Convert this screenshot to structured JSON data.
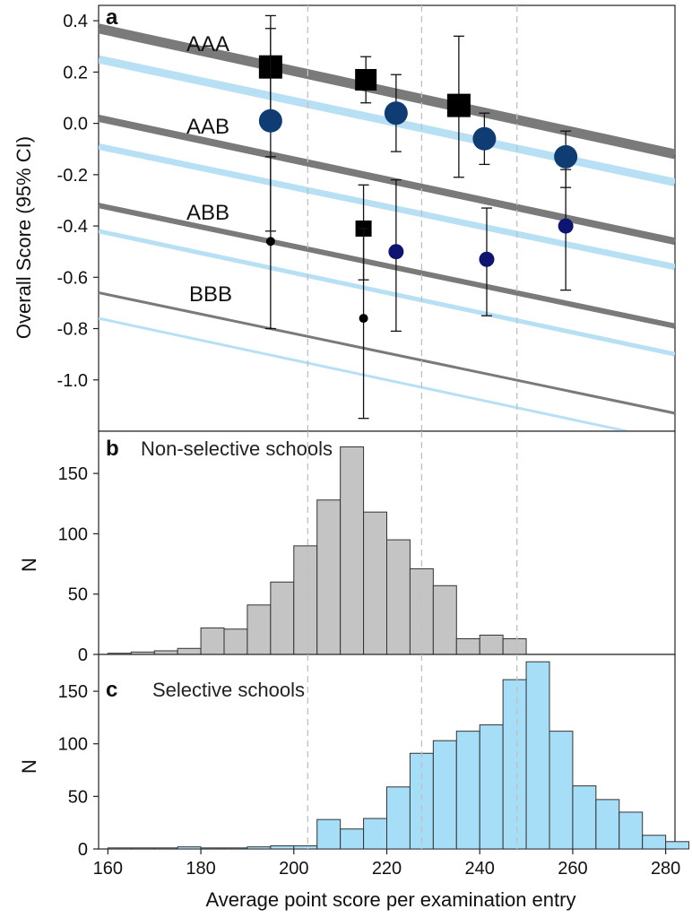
{
  "colors": {
    "grey_line": "#7a7a7a",
    "blue_line": "#b8e0f5",
    "square_marker": "#000000",
    "circle_marker": "#0f3d73",
    "small_circle_marker": "#0d1570",
    "hist_non_selective": "#c4c4c4",
    "hist_selective": "#a6def7",
    "dashed_line": "#c0c0c0"
  },
  "chart_data": [
    {
      "panel": "a",
      "type": "scatter",
      "title": "",
      "xlabel": "",
      "ylabel": "Overall Score (95% CI)",
      "xlim": [
        158,
        282
      ],
      "ylim": [
        -1.2,
        0.46
      ],
      "yticks": [
        "0.4",
        "0.2",
        "0.0",
        "-0.2",
        "-0.4",
        "-0.6",
        "-0.8",
        "-1.0"
      ],
      "dashed_vlines": [
        203,
        227.5,
        248
      ],
      "band_labels": [
        "AAA",
        "AAB",
        "ABB",
        "BBB"
      ],
      "lines": [
        {
          "group": "AAA",
          "color": "grey",
          "x": [
            158,
            282
          ],
          "y": [
            0.37,
            -0.12
          ],
          "width": 11
        },
        {
          "group": "AAA",
          "color": "blue",
          "x": [
            158,
            282
          ],
          "y": [
            0.25,
            -0.23
          ],
          "width": 9
        },
        {
          "group": "AAB",
          "color": "grey",
          "x": [
            158,
            282
          ],
          "y": [
            0.02,
            -0.46
          ],
          "width": 8
        },
        {
          "group": "AAB",
          "color": "blue",
          "x": [
            158,
            282
          ],
          "y": [
            -0.09,
            -0.56
          ],
          "width": 7
        },
        {
          "group": "ABB",
          "color": "grey",
          "x": [
            158,
            282
          ],
          "y": [
            -0.32,
            -0.79
          ],
          "width": 6
        },
        {
          "group": "ABB",
          "color": "blue",
          "x": [
            158,
            282
          ],
          "y": [
            -0.42,
            -0.9
          ],
          "width": 5
        },
        {
          "group": "BBB",
          "color": "grey",
          "x": [
            158,
            282
          ],
          "y": [
            -0.66,
            -1.13
          ],
          "width": 3
        },
        {
          "group": "BBB",
          "color": "blue",
          "x": [
            158,
            282
          ],
          "y": [
            -0.76,
            -1.24
          ],
          "width": 3
        }
      ],
      "points": [
        {
          "marker": "square",
          "size": 26,
          "x": 195,
          "y": 0.22,
          "ci": [
            0.03,
            0.37
          ]
        },
        {
          "marker": "square",
          "size": 24,
          "x": 215.5,
          "y": 0.17,
          "ci": [
            0.08,
            0.26
          ]
        },
        {
          "marker": "square",
          "size": 26,
          "x": 235.5,
          "y": 0.07,
          "ci": [
            -0.21,
            0.34
          ]
        },
        {
          "marker": "circle",
          "size": 26,
          "x": 195,
          "y": 0.01,
          "ci": [
            -0.42,
            0.42
          ]
        },
        {
          "marker": "circle",
          "size": 26,
          "x": 222,
          "y": 0.04,
          "ci": [
            -0.11,
            0.19
          ]
        },
        {
          "marker": "circle",
          "size": 26,
          "x": 241,
          "y": -0.06,
          "ci": [
            -0.16,
            0.04
          ]
        },
        {
          "marker": "circle",
          "size": 26,
          "x": 258.5,
          "y": -0.13,
          "ci": [
            -0.25,
            -0.03
          ]
        },
        {
          "marker": "square",
          "size": 18,
          "x": 215,
          "y": -0.41,
          "ci": [
            -0.61,
            -0.24
          ]
        },
        {
          "marker": "smallcircle",
          "size": 17,
          "x": 222,
          "y": -0.5,
          "ci": [
            -0.81,
            -0.22
          ]
        },
        {
          "marker": "smallcircle",
          "size": 17,
          "x": 241.5,
          "y": -0.53,
          "ci": [
            -0.75,
            -0.33
          ]
        },
        {
          "marker": "smallcircle",
          "size": 17,
          "x": 258.5,
          "y": -0.4,
          "ci": [
            -0.65,
            -0.18
          ]
        },
        {
          "marker": "dot",
          "size": 10,
          "x": 195,
          "y": -0.46,
          "ci": [
            -0.8,
            -0.13
          ]
        },
        {
          "marker": "dot",
          "size": 10,
          "x": 215,
          "y": -0.76,
          "ci": [
            -1.15,
            -0.41
          ]
        }
      ]
    },
    {
      "panel": "b",
      "type": "bar",
      "title": "Non-selective schools",
      "xlabel": "",
      "ylabel": "N",
      "xlim": [
        158,
        282
      ],
      "ylim": [
        0,
        185
      ],
      "yticks": [
        "0",
        "50",
        "100",
        "150"
      ],
      "bin_width": 5,
      "bins_start": [
        160,
        165,
        170,
        175,
        180,
        185,
        190,
        195,
        200,
        205,
        210,
        215,
        220,
        225,
        230,
        235,
        240,
        245
      ],
      "values": [
        1,
        2,
        3,
        5,
        22,
        21,
        41,
        60,
        90,
        128,
        172,
        118,
        95,
        71,
        57,
        13,
        16,
        13
      ]
    },
    {
      "panel": "c",
      "type": "bar",
      "title": "Selective schools",
      "xlabel": "Average point score per examination entry",
      "ylabel": "N",
      "xlim": [
        158,
        282
      ],
      "ylim": [
        0,
        185
      ],
      "yticks": [
        "0",
        "50",
        "100",
        "150"
      ],
      "xticks": [
        "160",
        "180",
        "200",
        "220",
        "240",
        "260",
        "280"
      ],
      "bin_width": 5,
      "bins_start": [
        160,
        165,
        170,
        175,
        180,
        185,
        190,
        195,
        200,
        205,
        210,
        215,
        220,
        225,
        230,
        235,
        240,
        245,
        250,
        255,
        260,
        265,
        270,
        275,
        280
      ],
      "values": [
        1,
        1,
        1,
        2,
        1,
        1,
        2,
        3,
        3,
        28,
        19,
        29,
        59,
        91,
        103,
        112,
        118,
        161,
        178,
        112,
        60,
        47,
        35,
        13,
        7
      ]
    }
  ]
}
